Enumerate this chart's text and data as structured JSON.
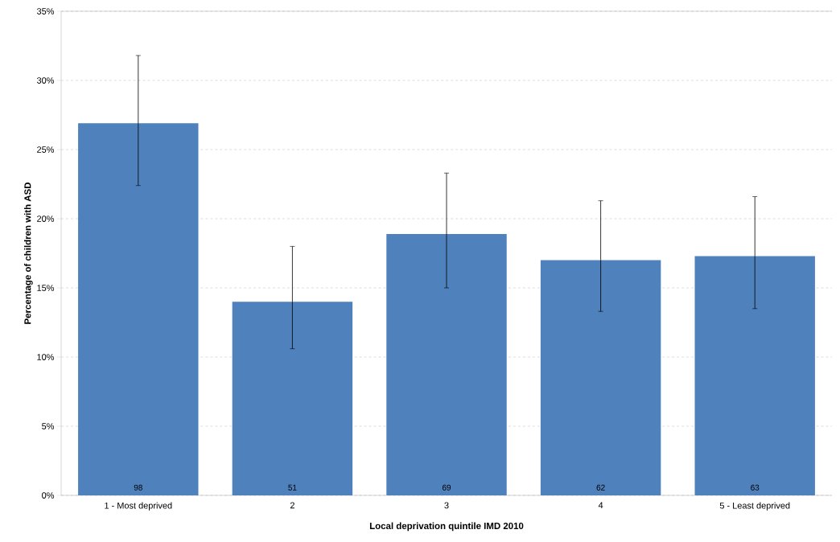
{
  "chart_data": {
    "type": "bar",
    "xlabel": "Local deprivation quintile IMD 2010",
    "ylabel": "Percentage of children with ASD",
    "categories": [
      "1 - Most deprived",
      "2",
      "3",
      "4",
      "5 - Least deprived"
    ],
    "values": [
      26.9,
      14.0,
      18.9,
      17.0,
      17.3
    ],
    "errors": [
      [
        22.4,
        31.8
      ],
      [
        10.6,
        18.0
      ],
      [
        15.0,
        23.3
      ],
      [
        13.3,
        21.3
      ],
      [
        13.5,
        21.6
      ]
    ],
    "color": "#4f81bd",
    "ylim": [
      0,
      35
    ],
    "yticks": [
      {
        "value": 0,
        "label": "0%"
      },
      {
        "value": 5,
        "label": "5%"
      },
      {
        "value": 10,
        "label": "10%"
      },
      {
        "value": 15,
        "label": "15%"
      },
      {
        "value": 20,
        "label": "20%"
      },
      {
        "value": 25,
        "label": "25%"
      },
      {
        "value": 30,
        "label": "30%"
      },
      {
        "value": 35,
        "label": "35%"
      }
    ],
    "grid": "y",
    "annotations": [
      "98",
      "51",
      "69",
      "62",
      "63"
    ]
  }
}
